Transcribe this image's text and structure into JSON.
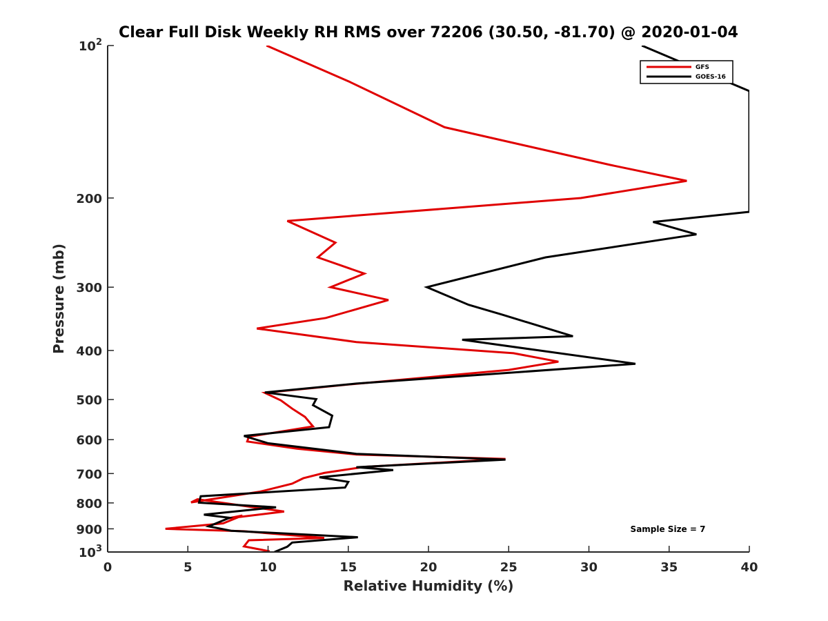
{
  "chart_data": {
    "type": "line",
    "title": "Clear Full Disk Weekly RH RMS over 72206 (30.50, -81.70) @ 2020-01-04",
    "xlabel": "Relative Humidity (%)",
    "ylabel": "Pressure (mb)",
    "xlim": [
      0,
      40
    ],
    "ylim": [
      100,
      1000
    ],
    "yscale": "log",
    "y_reversed": true,
    "grid": false,
    "legend_position": "top-right",
    "x_ticks": [
      "0",
      "5",
      "10",
      "15",
      "20",
      "25",
      "30",
      "35",
      "40"
    ],
    "y_ticks": [
      {
        "value": 100,
        "base": "10",
        "exp": "2"
      },
      {
        "value": 200,
        "label": "200"
      },
      {
        "value": 300,
        "label": "300"
      },
      {
        "value": 400,
        "label": "400"
      },
      {
        "value": 500,
        "label": "500"
      },
      {
        "value": 600,
        "label": "600"
      },
      {
        "value": 700,
        "label": "700"
      },
      {
        "value": 800,
        "label": "800"
      },
      {
        "value": 900,
        "label": "900"
      },
      {
        "value": 1000,
        "base": "10",
        "exp": "3"
      }
    ],
    "series": [
      {
        "name": "GFS",
        "color": "#e00000",
        "x": [
          9.9,
          15.1,
          21.0,
          31.3,
          36.1,
          29.5,
          11.2,
          14.2,
          13.1,
          16.0,
          13.9,
          17.5,
          13.6,
          9.3,
          15.5,
          25.3,
          28.1,
          25.0,
          15.0,
          9.8,
          10.8,
          11.5,
          12.3,
          12.8,
          8.8,
          8.7,
          11.8,
          15.5,
          24.8,
          16.0,
          13.5,
          12.2,
          11.5,
          9.5,
          5.2,
          5.6,
          11.0,
          7.5,
          8.4,
          7.2,
          3.6,
          8.5,
          13.5,
          8.8,
          8.5,
          10.1
        ],
        "y": [
          100,
          118,
          145,
          172,
          185,
          200,
          222,
          245,
          262,
          282,
          300,
          318,
          345,
          362,
          385,
          405,
          421,
          437,
          467,
          485,
          502,
          521,
          541,
          565,
          592,
          605,
          625,
          642,
          655,
          679,
          698,
          715,
          733,
          760,
          798,
          787,
          832,
          858,
          847,
          878,
          900,
          910,
          938,
          948,
          975,
          997
        ]
      },
      {
        "name": "GOES-16",
        "color": "#000000",
        "x": [
          33.3,
          40.0,
          40.0,
          34.0,
          36.7,
          27.3,
          19.9,
          22.5,
          24.6,
          29.0,
          22.1,
          32.9,
          25.8,
          15.5,
          9.8,
          13.0,
          12.8,
          14.0,
          13.8,
          8.5,
          10.0,
          15.5,
          24.8,
          15.5,
          17.8,
          13.2,
          15.0,
          14.8,
          5.8,
          5.7,
          10.5,
          6.0,
          7.6,
          6.3,
          7.7,
          15.6,
          11.5,
          11.2,
          10.4
        ],
        "y": [
          100,
          123,
          213,
          223,
          236,
          262,
          300,
          325,
          340,
          375,
          381,
          425,
          441,
          465,
          484,
          499,
          513,
          538,
          567,
          590,
          610,
          640,
          657,
          680,
          689,
          712,
          727,
          746,
          776,
          799,
          816,
          844,
          856,
          890,
          908,
          935,
          958,
          976,
          1000
        ]
      }
    ],
    "annotations": [
      "Sample Size = 7"
    ]
  }
}
